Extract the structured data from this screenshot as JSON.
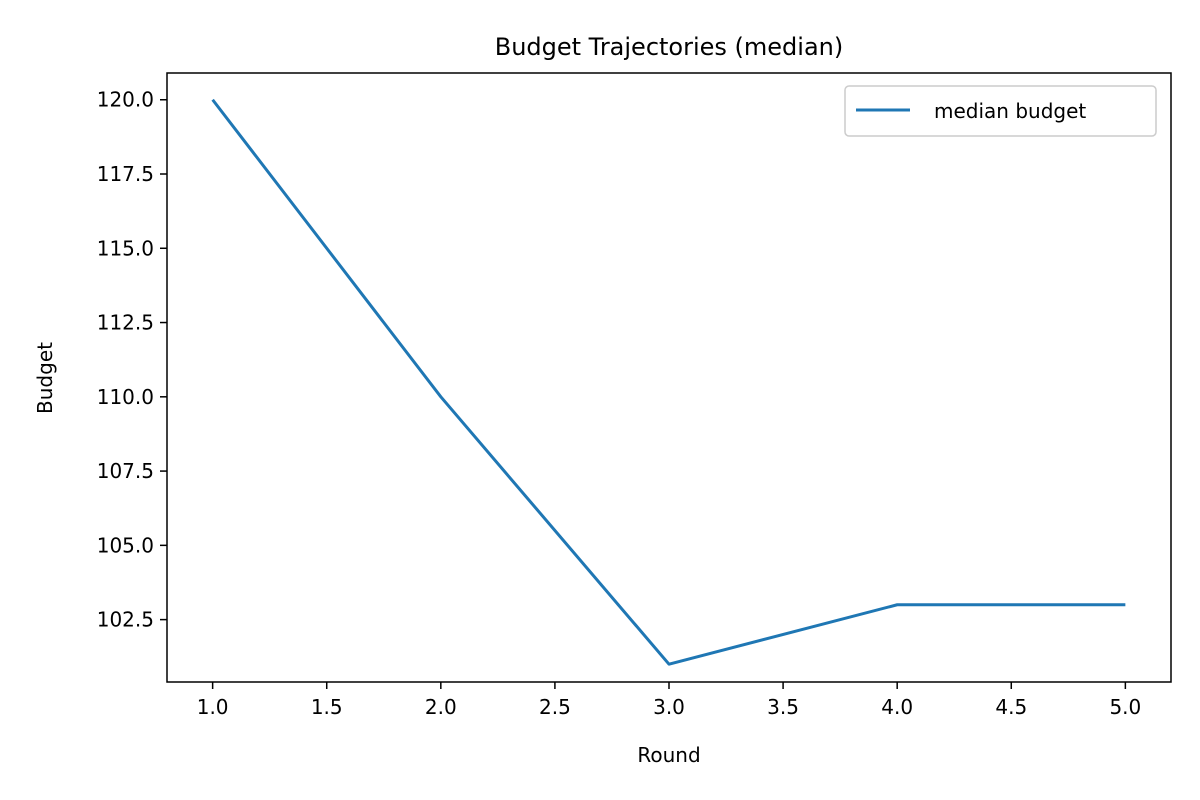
{
  "chart_data": {
    "type": "line",
    "title": "Budget Trajectories (median)",
    "xlabel": "Round",
    "ylabel": "Budget",
    "xlim": [
      0.8,
      5.2
    ],
    "ylim": [
      100.4,
      120.9
    ],
    "xticks": [
      "1.0",
      "1.5",
      "2.0",
      "2.5",
      "3.0",
      "3.5",
      "4.0",
      "4.5",
      "5.0"
    ],
    "yticks": [
      "102.5",
      "105.0",
      "107.5",
      "110.0",
      "112.5",
      "115.0",
      "117.5",
      "120.0"
    ],
    "grid": false,
    "legend_position": "top-right",
    "series": [
      {
        "name": "median budget",
        "color": "#1f77b4",
        "x": [
          1,
          2,
          3,
          4,
          5
        ],
        "y": [
          120,
          110,
          101,
          103,
          103
        ]
      }
    ]
  }
}
